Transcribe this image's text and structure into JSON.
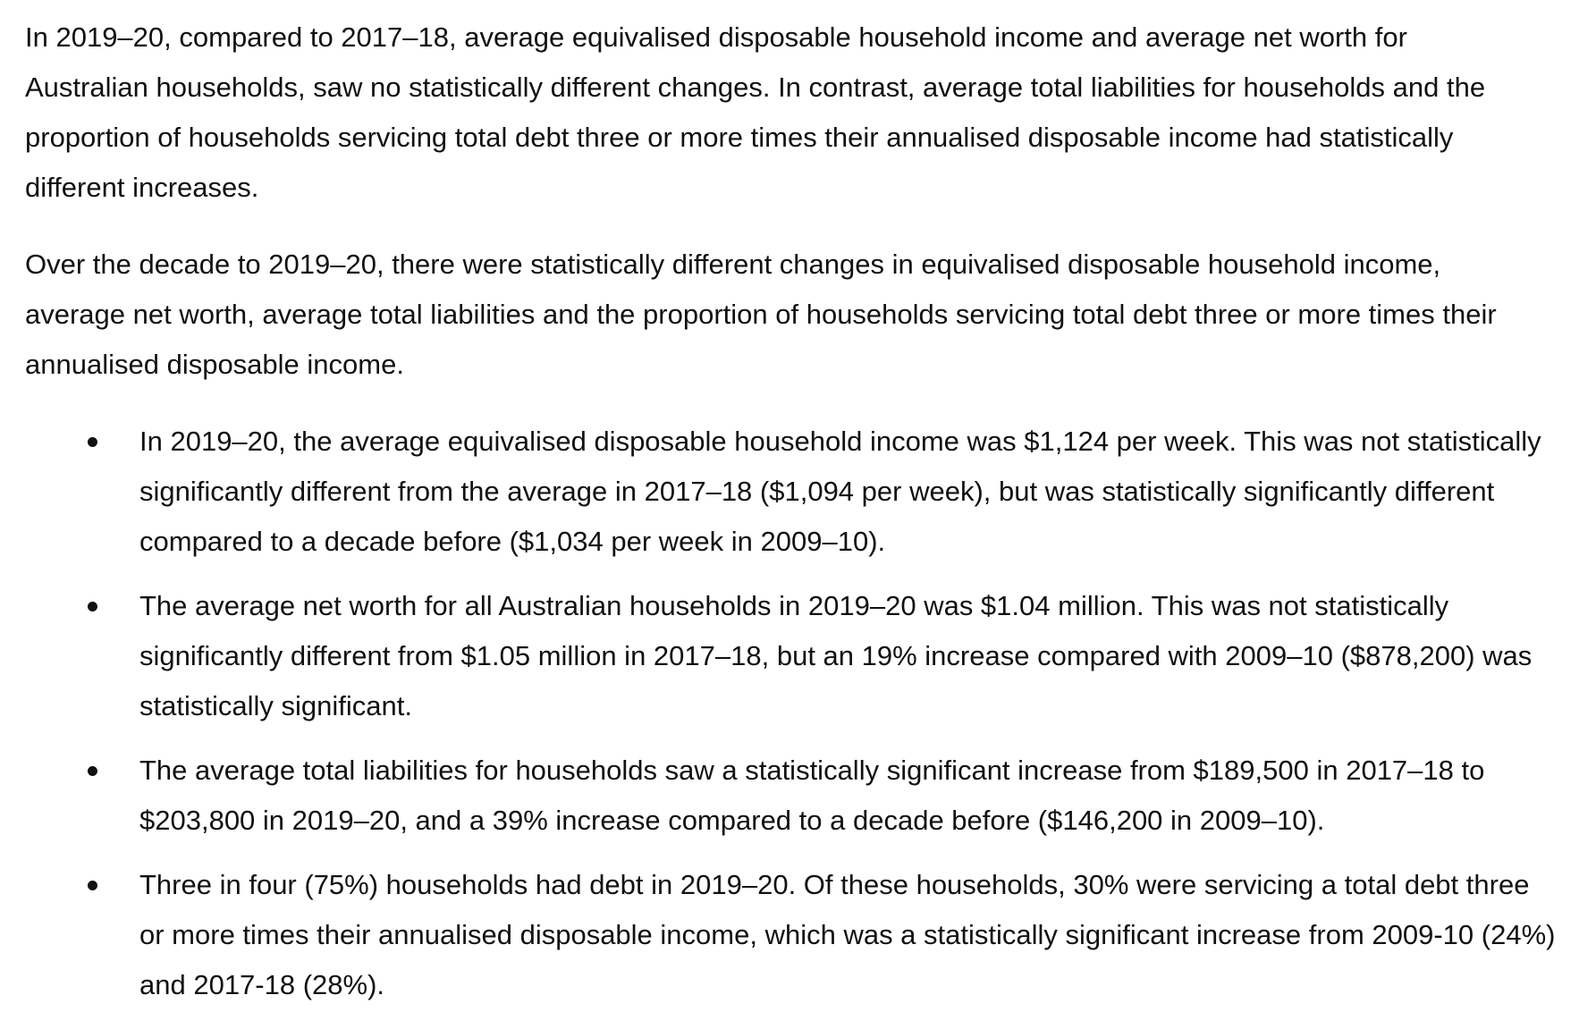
{
  "paragraphs": [
    "In 2019–20, compared to 2017–18, average equivalised disposable household income and average net worth for Australian households, saw no statistically different changes.  In contrast, average total liabilities for households and the proportion of households servicing total debt three or more times their annualised disposable income had statistically different increases.",
    "Over the decade to 2019–20,  there were statistically different changes in equivalised disposable household income, average net worth, average total liabilities and the proportion of households servicing total debt three or more times their annualised disposable income."
  ],
  "bullets": [
    "In 2019–20, the average equivalised disposable household income was $1,124 per week. This was not statistically significantly different from the average in 2017–18 ($1,094 per week), but was statistically significantly different compared to a decade before ($1,034 per week in 2009–10).",
    "The average net worth for all Australian households in 2019–20 was $1.04 million. This was not statistically significantly different from $1.05 million in 2017–18, but an 19% increase compared with 2009–10 ($878,200) was statistically significant.",
    "The average total liabilities for households saw a statistically significant increase from $189,500 in 2017–18 to $203,800 in 2019–20, and a 39% increase compared to a decade before ($146,200 in 2009–10).",
    "Three in four (75%) households had debt in 2019–20. Of these households, 30% were servicing a total debt three or more times their annualised disposable income, which was a statistically significant increase from 2009-10 (24%) and 2017-18 (28%)."
  ]
}
